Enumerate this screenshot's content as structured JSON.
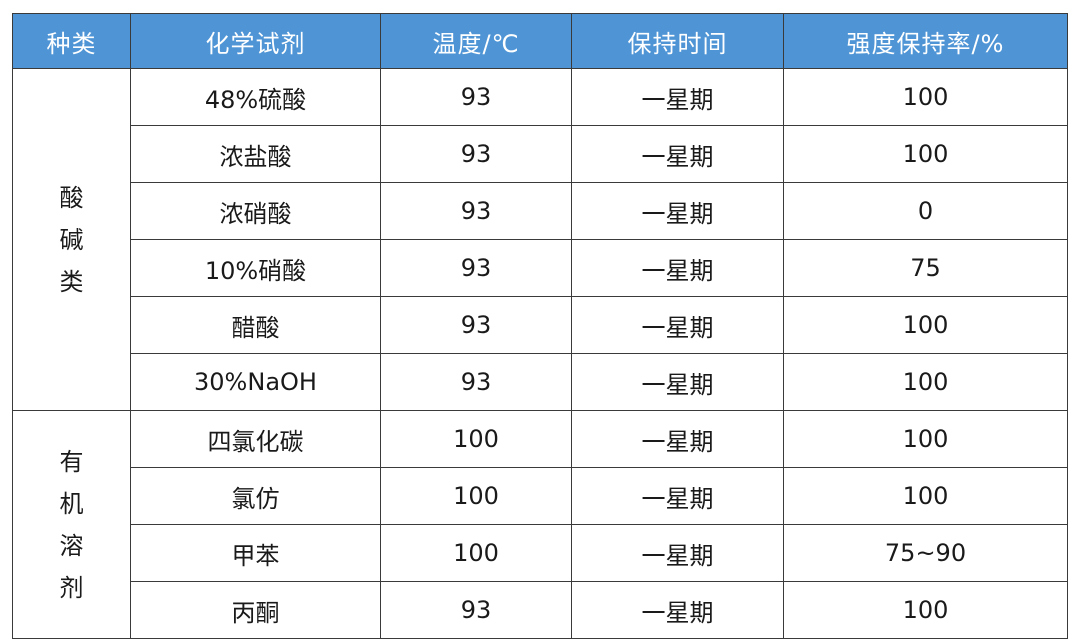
{
  "table": {
    "headers": [
      "种类",
      "化学试剂",
      "温度/℃",
      "保持时间",
      "强度保持率/%"
    ],
    "groups": [
      {
        "category_chars": [
          "酸",
          "碱",
          "类"
        ],
        "rows": [
          {
            "chemical": "48%硫酸",
            "temperature": "93",
            "duration": "一星期",
            "retention": "100"
          },
          {
            "chemical": "浓盐酸",
            "temperature": "93",
            "duration": "一星期",
            "retention": "100"
          },
          {
            "chemical": "浓硝酸",
            "temperature": "93",
            "duration": "一星期",
            "retention": "0"
          },
          {
            "chemical": "10%硝酸",
            "temperature": "93",
            "duration": "一星期",
            "retention": "75"
          },
          {
            "chemical": "醋酸",
            "temperature": "93",
            "duration": "一星期",
            "retention": "100"
          },
          {
            "chemical": "30%NaOH",
            "temperature": "93",
            "duration": "一星期",
            "retention": "100"
          }
        ]
      },
      {
        "category_chars": [
          "有",
          "机",
          "溶",
          "剂"
        ],
        "rows": [
          {
            "chemical": "四氯化碳",
            "temperature": "100",
            "duration": "一星期",
            "retention": "100"
          },
          {
            "chemical": "氯仿",
            "temperature": "100",
            "duration": "一星期",
            "retention": "100"
          },
          {
            "chemical": "甲苯",
            "temperature": "100",
            "duration": "一星期",
            "retention": "75~90"
          },
          {
            "chemical": "丙酮",
            "temperature": "93",
            "duration": "一星期",
            "retention": "100"
          }
        ]
      }
    ],
    "colors": {
      "header_bg": "#4f95d6",
      "header_text": "#ffffff",
      "border": "#3a3a3a",
      "body_text": "#1a1a1a"
    }
  }
}
